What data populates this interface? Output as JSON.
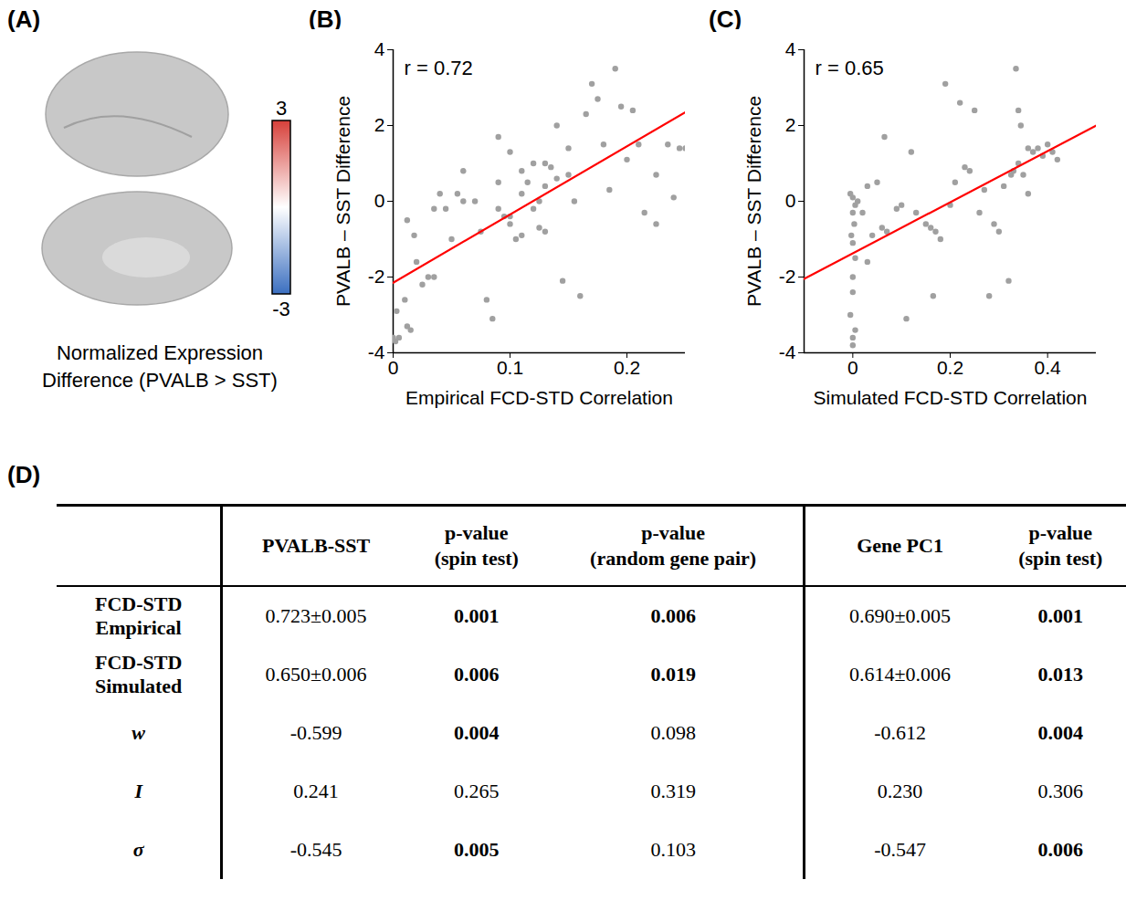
{
  "panel_labels": [
    "(A)",
    "(B)",
    "(C)",
    "(D)"
  ],
  "panel_a": {
    "type": "surface map",
    "caption": "Normalized Expression Difference (PVALB > SST)",
    "colorbar": {
      "range": [
        -3,
        3
      ],
      "ticks": [
        3,
        -3
      ],
      "colors": [
        "#3b6fc0",
        "#ffffff",
        "#d7403a"
      ]
    }
  },
  "chart_data": [
    {
      "type": "scatter",
      "annotation": "r = 0.72",
      "x_label": "Empirical FCD-STD Correlation",
      "y_label": "PVALB – SST Difference",
      "color": "#a0a0a0",
      "xlim": [
        0,
        0.25
      ],
      "xticks": [
        0,
        0.1,
        0.2
      ],
      "ylim": [
        -4,
        4
      ],
      "yticks": [
        -4,
        -2,
        0,
        2,
        4
      ],
      "x": [
        0,
        0.002,
        0.005,
        0.003,
        0.01,
        0.012,
        0.015,
        0.012,
        0.018,
        0.02,
        0.025,
        0.03,
        0.035,
        0.035,
        0.04,
        0.045,
        0.05,
        0.055,
        0.06,
        0.07,
        0.08,
        0.085,
        0.09,
        0.09,
        0.095,
        0.1,
        0.1,
        0.1,
        0.105,
        0.11,
        0.11,
        0.115,
        0.12,
        0.12,
        0.125,
        0.125,
        0.13,
        0.13,
        0.13,
        0.135,
        0.14,
        0.14,
        0.145,
        0.15,
        0.15,
        0.155,
        0.16,
        0.165,
        0.17,
        0.175,
        0.18,
        0.185,
        0.19,
        0.195,
        0.2,
        0.205,
        0.21,
        0.215,
        0.225,
        0.225,
        0.235,
        0.24,
        0.245,
        0.25,
        0.11,
        0.09,
        0.075,
        0.06
      ],
      "values": [
        -3.6,
        -3.7,
        -3.6,
        -2.9,
        -2.6,
        -3.3,
        -3.4,
        -0.5,
        -0.9,
        -1.6,
        -2.2,
        -2.0,
        -2.0,
        -0.2,
        0.2,
        -0.2,
        -1.0,
        0.2,
        0.0,
        0.0,
        -2.6,
        -3.1,
        1.7,
        0.5,
        -0.4,
        -0.4,
        1.3,
        -0.6,
        -1.0,
        0.2,
        -0.9,
        0.5,
        -0.2,
        1.0,
        0.0,
        -0.7,
        -0.8,
        1.0,
        0.4,
        0.9,
        2.0,
        0.6,
        -2.1,
        1.4,
        0.7,
        0.0,
        -2.5,
        2.3,
        3.1,
        2.7,
        1.5,
        0.3,
        3.5,
        2.5,
        1.1,
        2.4,
        1.5,
        -0.3,
        0.7,
        -0.6,
        1.5,
        0.1,
        1.4,
        1.4,
        0.8,
        -0.2,
        -0.8,
        0.8
      ],
      "trend_line": {
        "x": [
          0,
          0.25
        ],
        "values": [
          -2.15,
          2.35
        ],
        "color": "#ff0000"
      }
    },
    {
      "type": "scatter",
      "annotation": "r = 0.65",
      "x_label": "Simulated FCD-STD Correlation",
      "y_label": "PVALB – SST Difference",
      "color": "#a0a0a0",
      "xlim": [
        -0.1,
        0.5
      ],
      "xticks": [
        0,
        0.2,
        0.4
      ],
      "ylim": [
        -4,
        4
      ],
      "yticks": [
        -4,
        -2,
        0,
        2,
        4
      ],
      "x": [
        0,
        0,
        0.005,
        -0.005,
        0,
        0,
        0.005,
        0,
        -0.003,
        0.003,
        0,
        0.005,
        0,
        -0.005,
        0.01,
        0.02,
        0.03,
        0.03,
        0.04,
        0.05,
        0.06,
        0.065,
        0.07,
        0.09,
        0.1,
        0.11,
        0.12,
        0.13,
        0.15,
        0.16,
        0.165,
        0.17,
        0.18,
        0.19,
        0.2,
        0.21,
        0.22,
        0.23,
        0.24,
        0.25,
        0.26,
        0.27,
        0.28,
        0.29,
        0.3,
        0.31,
        0.32,
        0.325,
        0.33,
        0.335,
        0.34,
        0.34,
        0.345,
        0.35,
        0.36,
        0.37,
        0.38,
        0.39,
        0.4,
        0.41,
        0.42,
        0.36
      ],
      "values": [
        -3.6,
        -3.8,
        -3.4,
        -3.0,
        -2.4,
        -2.0,
        -1.5,
        -1.1,
        -0.9,
        -0.6,
        -0.3,
        -0.1,
        0.1,
        0.2,
        0.0,
        -0.3,
        -1.6,
        0.4,
        -0.9,
        0.5,
        -0.7,
        1.7,
        -0.8,
        -0.2,
        -0.1,
        -3.1,
        1.3,
        -0.3,
        -0.6,
        -0.7,
        -2.5,
        -0.8,
        -1.0,
        3.1,
        -0.1,
        0.5,
        2.6,
        0.9,
        0.8,
        2.4,
        -0.3,
        0.3,
        -2.5,
        -0.6,
        -0.8,
        0.4,
        -2.1,
        0.7,
        0.8,
        3.5,
        2.4,
        1.0,
        2.0,
        0.7,
        1.4,
        1.3,
        1.4,
        1.2,
        1.5,
        1.3,
        1.1,
        0.2
      ],
      "trend_line": {
        "x": [
          -0.1,
          0.5
        ],
        "values": [
          -2.05,
          2.0
        ],
        "color": "#ff0000"
      }
    }
  ],
  "table": {
    "header": [
      "",
      "PVALB-SST",
      "p-value (spin test)",
      "p-value (random gene pair)",
      "Gene PC1",
      "p-value (spin test)"
    ],
    "rows": [
      {
        "label": "FCD-STD Empirical",
        "italic": false,
        "cells": [
          "0.723±0.005",
          "0.001",
          "0.006",
          "0.690±0.005",
          "0.001"
        ],
        "bold": [
          false,
          true,
          true,
          false,
          true
        ]
      },
      {
        "label": "FCD-STD Simulated",
        "italic": false,
        "cells": [
          "0.650±0.006",
          "0.006",
          "0.019",
          "0.614±0.006",
          "0.013"
        ],
        "bold": [
          false,
          true,
          true,
          false,
          true
        ]
      },
      {
        "label": "w",
        "italic": true,
        "cells": [
          "-0.599",
          "0.004",
          "0.098",
          "-0.612",
          "0.004"
        ],
        "bold": [
          false,
          true,
          false,
          false,
          true
        ]
      },
      {
        "label": "I",
        "italic": true,
        "cells": [
          "0.241",
          "0.265",
          "0.319",
          "0.230",
          "0.306"
        ],
        "bold": [
          false,
          false,
          false,
          false,
          false
        ]
      },
      {
        "label": "σ",
        "italic": true,
        "cells": [
          "-0.545",
          "0.005",
          "0.103",
          "-0.547",
          "0.006"
        ],
        "bold": [
          false,
          true,
          false,
          false,
          true
        ]
      }
    ]
  }
}
